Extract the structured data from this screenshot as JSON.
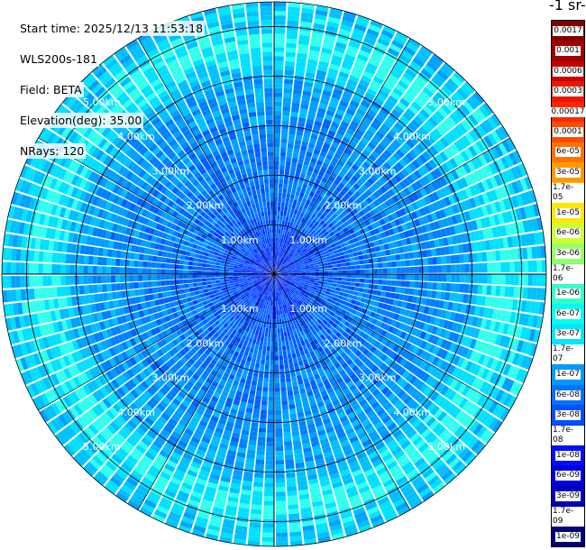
{
  "header": {
    "start_time": "Start time: 2025/12/13 11:53:18",
    "instrument": "WLS200s-181",
    "field": "Field: BETA",
    "elevation": "Elevation(deg): 35.00",
    "nrays": "NRays: 120"
  },
  "colorbar": {
    "unit_label": "-1 sr-",
    "ticks": [
      "0.0017",
      "0.001",
      "0.0006",
      "0.0003",
      "0.00017",
      "0.0001",
      "6e-05",
      "3e-05",
      "1.7e-05",
      "1e-05",
      "6e-06",
      "3e-06",
      "1.7e-06",
      "1e-06",
      "6e-07",
      "3e-07",
      "1.7e-07",
      "1e-07",
      "6e-08",
      "3e-08",
      "1.7e-08",
      "1e-08",
      "6e-09",
      "3e-09",
      "1.7e-09",
      "1e-09"
    ],
    "colors": [
      "#800000",
      "#a00000",
      "#c80000",
      "#e61a00",
      "#ff2600",
      "#ff4d00",
      "#ff7300",
      "#ff9900",
      "#ffbf00",
      "#ffe600",
      "#ccff33",
      "#99ff66",
      "#66ff99",
      "#33ffcc",
      "#00ffee",
      "#00e6ff",
      "#00bfff",
      "#0099ff",
      "#0073ff",
      "#0050ff",
      "#0030ff",
      "#0010ff",
      "#0000dd",
      "#0000bb",
      "#000099",
      "#000077"
    ]
  },
  "chart_data": {
    "type": "polar-ppi",
    "field": "BETA",
    "nrays": 120,
    "max_range_km": 5.5,
    "range_rings_km": [
      1.0,
      2.0,
      3.0,
      4.0,
      5.0
    ],
    "ring_labels": [
      "1.00km",
      "2.00km",
      "3.00km",
      "4.00km",
      "5.00km"
    ],
    "colormap": "jet",
    "value_range": [
      1e-09,
      0.0017
    ]
  }
}
